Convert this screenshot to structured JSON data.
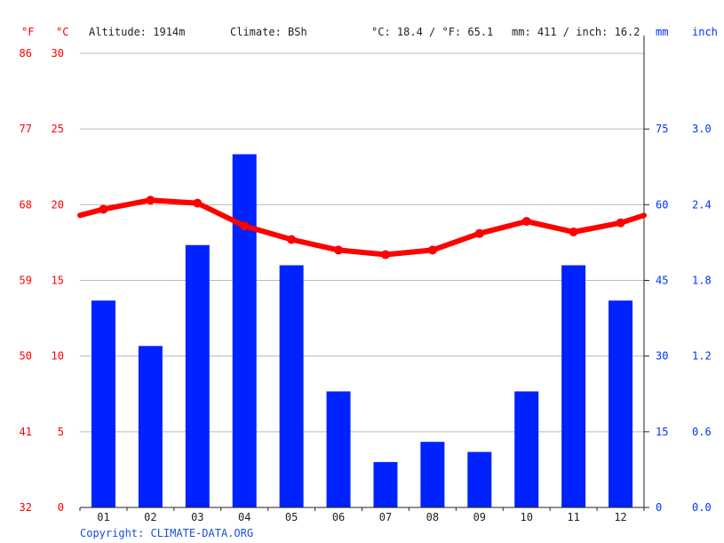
{
  "header": {
    "unit_f": "°F",
    "unit_c": "°C",
    "altitude": "Altitude: 1914m",
    "climate": "Climate: BSh",
    "temp_avg": "°C: 18.4 / °F: 65.1",
    "precip_total": "mm: 411 / inch: 16.2",
    "unit_mm": "mm",
    "unit_inch": "inch"
  },
  "copyright": "Copyright: CLIMATE-DATA.ORG",
  "chart_data": {
    "type": "bar",
    "categories": [
      "01",
      "02",
      "03",
      "04",
      "05",
      "06",
      "07",
      "08",
      "09",
      "10",
      "11",
      "12"
    ],
    "series": [
      {
        "type": "bar",
        "axis": "right",
        "unit": "mm",
        "color": "#0022ff",
        "values": [
          41,
          32,
          52,
          70,
          48,
          23,
          9,
          13,
          11,
          23,
          48,
          41
        ]
      },
      {
        "type": "line",
        "axis": "left",
        "unit": "°C",
        "color": "#ff0000",
        "values": [
          19.7,
          20.3,
          20.1,
          18.6,
          17.7,
          17.0,
          16.7,
          17.0,
          18.1,
          18.9,
          18.2,
          18.8
        ],
        "edge_start": 19.3,
        "edge_end": 19.3
      }
    ],
    "y_left": {
      "ylim": [
        0,
        30
      ],
      "ticks_c": [
        "0",
        "5",
        "10",
        "15",
        "20",
        "25",
        "30"
      ],
      "ticks_f": [
        "32",
        "41",
        "50",
        "59",
        "68",
        "77",
        "86"
      ]
    },
    "y_right": {
      "ylim": [
        0,
        90
      ],
      "ticks_mm": [
        "0",
        "15",
        "30",
        "45",
        "60",
        "75"
      ],
      "ticks_inch": [
        "0.0",
        "0.6",
        "1.2",
        "1.8",
        "2.4",
        "3.0"
      ]
    },
    "grid": true,
    "legend": "none"
  },
  "colors": {
    "temperature": "#ff0000",
    "precipitation": "#0022ff",
    "grid": "#bbbbbb"
  }
}
